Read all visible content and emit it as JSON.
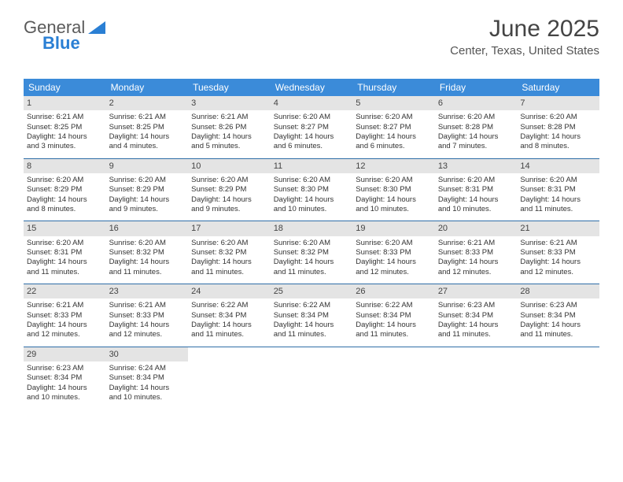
{
  "logo": {
    "text1": "General",
    "text2": "Blue"
  },
  "header": {
    "month": "June 2025",
    "location": "Center, Texas, United States"
  },
  "colors": {
    "header_bg": "#3b8bd9",
    "header_text": "#ffffff",
    "daynum_bg": "#e4e4e4",
    "row_border": "#2f6ea8",
    "logo_gray": "#5a5a5a",
    "logo_blue": "#2a7fd4",
    "body_text": "#333333"
  },
  "week_days": [
    "Sunday",
    "Monday",
    "Tuesday",
    "Wednesday",
    "Thursday",
    "Friday",
    "Saturday"
  ],
  "cells": [
    [
      {
        "n": "1",
        "sr": "Sunrise: 6:21 AM",
        "ss": "Sunset: 8:25 PM",
        "d1": "Daylight: 14 hours",
        "d2": "and 3 minutes."
      },
      {
        "n": "2",
        "sr": "Sunrise: 6:21 AM",
        "ss": "Sunset: 8:25 PM",
        "d1": "Daylight: 14 hours",
        "d2": "and 4 minutes."
      },
      {
        "n": "3",
        "sr": "Sunrise: 6:21 AM",
        "ss": "Sunset: 8:26 PM",
        "d1": "Daylight: 14 hours",
        "d2": "and 5 minutes."
      },
      {
        "n": "4",
        "sr": "Sunrise: 6:20 AM",
        "ss": "Sunset: 8:27 PM",
        "d1": "Daylight: 14 hours",
        "d2": "and 6 minutes."
      },
      {
        "n": "5",
        "sr": "Sunrise: 6:20 AM",
        "ss": "Sunset: 8:27 PM",
        "d1": "Daylight: 14 hours",
        "d2": "and 6 minutes."
      },
      {
        "n": "6",
        "sr": "Sunrise: 6:20 AM",
        "ss": "Sunset: 8:28 PM",
        "d1": "Daylight: 14 hours",
        "d2": "and 7 minutes."
      },
      {
        "n": "7",
        "sr": "Sunrise: 6:20 AM",
        "ss": "Sunset: 8:28 PM",
        "d1": "Daylight: 14 hours",
        "d2": "and 8 minutes."
      }
    ],
    [
      {
        "n": "8",
        "sr": "Sunrise: 6:20 AM",
        "ss": "Sunset: 8:29 PM",
        "d1": "Daylight: 14 hours",
        "d2": "and 8 minutes."
      },
      {
        "n": "9",
        "sr": "Sunrise: 6:20 AM",
        "ss": "Sunset: 8:29 PM",
        "d1": "Daylight: 14 hours",
        "d2": "and 9 minutes."
      },
      {
        "n": "10",
        "sr": "Sunrise: 6:20 AM",
        "ss": "Sunset: 8:29 PM",
        "d1": "Daylight: 14 hours",
        "d2": "and 9 minutes."
      },
      {
        "n": "11",
        "sr": "Sunrise: 6:20 AM",
        "ss": "Sunset: 8:30 PM",
        "d1": "Daylight: 14 hours",
        "d2": "and 10 minutes."
      },
      {
        "n": "12",
        "sr": "Sunrise: 6:20 AM",
        "ss": "Sunset: 8:30 PM",
        "d1": "Daylight: 14 hours",
        "d2": "and 10 minutes."
      },
      {
        "n": "13",
        "sr": "Sunrise: 6:20 AM",
        "ss": "Sunset: 8:31 PM",
        "d1": "Daylight: 14 hours",
        "d2": "and 10 minutes."
      },
      {
        "n": "14",
        "sr": "Sunrise: 6:20 AM",
        "ss": "Sunset: 8:31 PM",
        "d1": "Daylight: 14 hours",
        "d2": "and 11 minutes."
      }
    ],
    [
      {
        "n": "15",
        "sr": "Sunrise: 6:20 AM",
        "ss": "Sunset: 8:31 PM",
        "d1": "Daylight: 14 hours",
        "d2": "and 11 minutes."
      },
      {
        "n": "16",
        "sr": "Sunrise: 6:20 AM",
        "ss": "Sunset: 8:32 PM",
        "d1": "Daylight: 14 hours",
        "d2": "and 11 minutes."
      },
      {
        "n": "17",
        "sr": "Sunrise: 6:20 AM",
        "ss": "Sunset: 8:32 PM",
        "d1": "Daylight: 14 hours",
        "d2": "and 11 minutes."
      },
      {
        "n": "18",
        "sr": "Sunrise: 6:20 AM",
        "ss": "Sunset: 8:32 PM",
        "d1": "Daylight: 14 hours",
        "d2": "and 11 minutes."
      },
      {
        "n": "19",
        "sr": "Sunrise: 6:20 AM",
        "ss": "Sunset: 8:33 PM",
        "d1": "Daylight: 14 hours",
        "d2": "and 12 minutes."
      },
      {
        "n": "20",
        "sr": "Sunrise: 6:21 AM",
        "ss": "Sunset: 8:33 PM",
        "d1": "Daylight: 14 hours",
        "d2": "and 12 minutes."
      },
      {
        "n": "21",
        "sr": "Sunrise: 6:21 AM",
        "ss": "Sunset: 8:33 PM",
        "d1": "Daylight: 14 hours",
        "d2": "and 12 minutes."
      }
    ],
    [
      {
        "n": "22",
        "sr": "Sunrise: 6:21 AM",
        "ss": "Sunset: 8:33 PM",
        "d1": "Daylight: 14 hours",
        "d2": "and 12 minutes."
      },
      {
        "n": "23",
        "sr": "Sunrise: 6:21 AM",
        "ss": "Sunset: 8:33 PM",
        "d1": "Daylight: 14 hours",
        "d2": "and 12 minutes."
      },
      {
        "n": "24",
        "sr": "Sunrise: 6:22 AM",
        "ss": "Sunset: 8:34 PM",
        "d1": "Daylight: 14 hours",
        "d2": "and 11 minutes."
      },
      {
        "n": "25",
        "sr": "Sunrise: 6:22 AM",
        "ss": "Sunset: 8:34 PM",
        "d1": "Daylight: 14 hours",
        "d2": "and 11 minutes."
      },
      {
        "n": "26",
        "sr": "Sunrise: 6:22 AM",
        "ss": "Sunset: 8:34 PM",
        "d1": "Daylight: 14 hours",
        "d2": "and 11 minutes."
      },
      {
        "n": "27",
        "sr": "Sunrise: 6:23 AM",
        "ss": "Sunset: 8:34 PM",
        "d1": "Daylight: 14 hours",
        "d2": "and 11 minutes."
      },
      {
        "n": "28",
        "sr": "Sunrise: 6:23 AM",
        "ss": "Sunset: 8:34 PM",
        "d1": "Daylight: 14 hours",
        "d2": "and 11 minutes."
      }
    ],
    [
      {
        "n": "29",
        "sr": "Sunrise: 6:23 AM",
        "ss": "Sunset: 8:34 PM",
        "d1": "Daylight: 14 hours",
        "d2": "and 10 minutes."
      },
      {
        "n": "30",
        "sr": "Sunrise: 6:24 AM",
        "ss": "Sunset: 8:34 PM",
        "d1": "Daylight: 14 hours",
        "d2": "and 10 minutes."
      },
      {
        "empty": true
      },
      {
        "empty": true
      },
      {
        "empty": true
      },
      {
        "empty": true
      },
      {
        "empty": true
      }
    ]
  ]
}
